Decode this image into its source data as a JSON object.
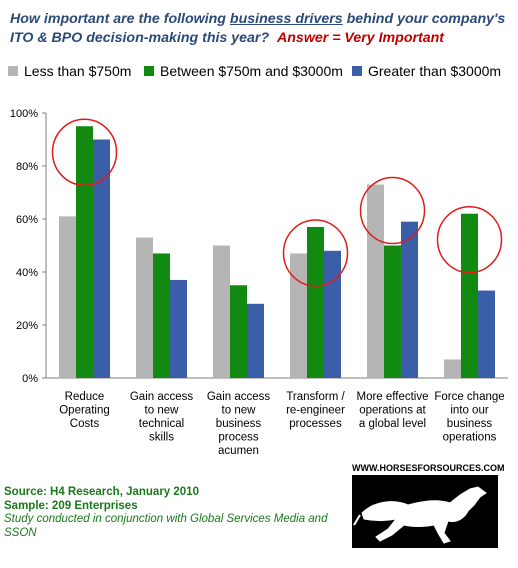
{
  "title": {
    "part1": "How important are the following ",
    "underlined": "business drivers",
    "part2": " behind your company's ITO & BPO decision-making this year?",
    "answer": "Answer = Very Important"
  },
  "colors": {
    "series1": "#b5b5b5",
    "series2": "#128a12",
    "series3": "#3b5ea8",
    "circle": "#e01b1b"
  },
  "chart_data": {
    "type": "bar",
    "categories": [
      [
        "Reduce",
        "Operating",
        "Costs"
      ],
      [
        "Gain access",
        "to new",
        "technical",
        "skills"
      ],
      [
        "Gain access",
        "to new",
        "business",
        "process",
        "acumen"
      ],
      [
        "Transform /",
        "re-engineer",
        "processes"
      ],
      [
        "More effective",
        "operations at",
        "a global level"
      ],
      [
        "Force change",
        "into our",
        "business",
        "operations"
      ]
    ],
    "series": [
      {
        "name": "Less than $750m",
        "values": [
          61,
          53,
          50,
          47,
          73,
          7
        ]
      },
      {
        "name": "Between $750m and $3000m",
        "values": [
          95,
          47,
          35,
          57,
          50,
          62
        ]
      },
      {
        "name": "Greater than $3000m",
        "values": [
          90,
          37,
          28,
          48,
          59,
          33
        ]
      }
    ],
    "ylim": [
      0,
      100
    ],
    "yticks": [
      "0%",
      "20%",
      "40%",
      "60%",
      "80%",
      "100%"
    ],
    "highlighted_categories": [
      0,
      3,
      4,
      5
    ],
    "legend_position": "top"
  },
  "footer": {
    "source": "Source:  H4 Research, January 2010",
    "sample": "Sample:  209 Enterprises",
    "study": "Study conducted in conjunction with Global Services Media and SSON"
  },
  "logo": {
    "url": "WWW.HORSESFORSOURCES.COM"
  }
}
